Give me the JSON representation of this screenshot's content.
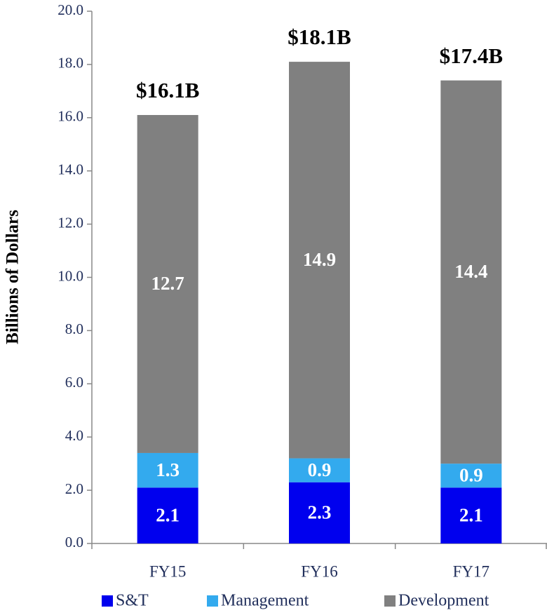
{
  "chart_data": {
    "type": "stacked_bar",
    "ylabel": "Billions of Dollars",
    "categories": [
      "FY15",
      "FY16",
      "FY17"
    ],
    "series": [
      {
        "name": "S&T",
        "color": "#0000ee",
        "values": [
          2.1,
          2.3,
          2.1
        ]
      },
      {
        "name": "Management",
        "color": "#33aaee",
        "values": [
          1.3,
          0.9,
          0.9
        ]
      },
      {
        "name": "Development",
        "color": "#808080",
        "values": [
          12.7,
          14.9,
          14.4
        ]
      }
    ],
    "annotations": [
      "$16.1B",
      "$18.1B",
      "$17.4B"
    ],
    "ylim": [
      0,
      20
    ],
    "yticks": [
      {
        "value": 0,
        "label": "0.0"
      },
      {
        "value": 2,
        "label": "2.0"
      },
      {
        "value": 4,
        "label": "4.0"
      },
      {
        "value": 6,
        "label": "6.0"
      },
      {
        "value": 8,
        "label": "8.0"
      },
      {
        "value": 10,
        "label": "10.0"
      },
      {
        "value": 12,
        "label": "12.0"
      },
      {
        "value": 14,
        "label": "14.0"
      },
      {
        "value": 16,
        "label": "16.0"
      },
      {
        "value": 18,
        "label": "18.0"
      },
      {
        "value": 20,
        "label": "20.0"
      }
    ],
    "legend": "bottom"
  }
}
